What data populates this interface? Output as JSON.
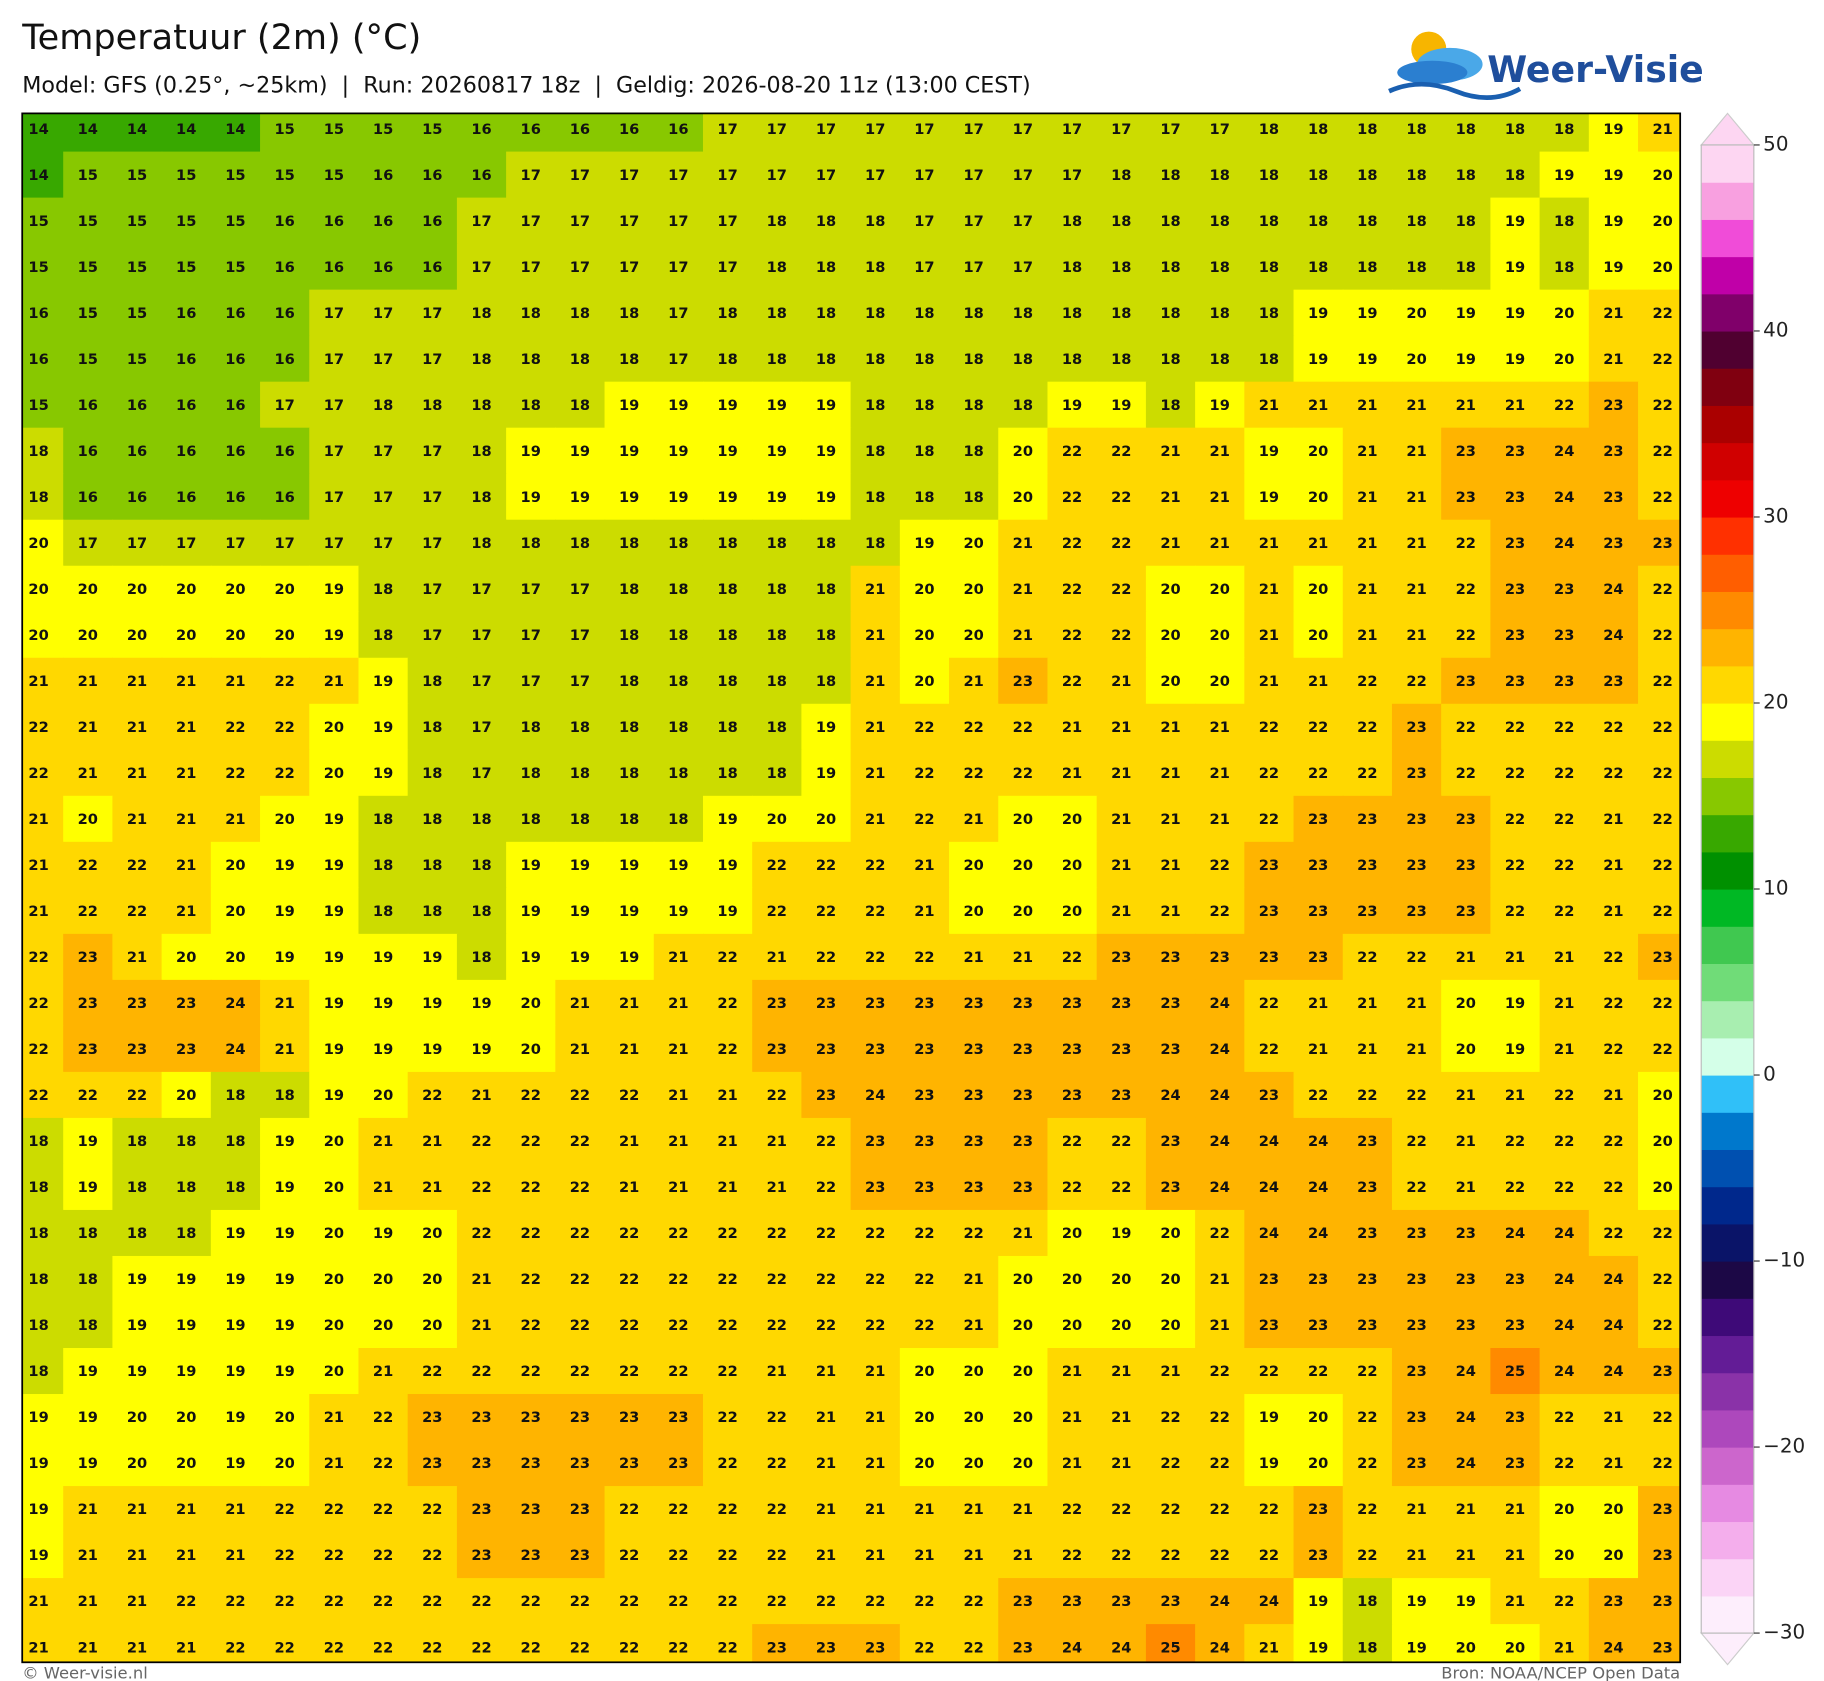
{
  "header": {
    "title": "Temperatuur (2m) (°C)",
    "subtitle": "Model: GFS (0.25°, ~25km)  |  Run: 20260817 18z  |  Geldig: 2026-08-20 11z (13:00 CEST)",
    "logo": "Weer-Visie"
  },
  "map": {
    "values": [
      [
        14,
        14,
        14,
        14,
        14,
        15,
        15,
        15,
        15,
        16,
        16,
        16,
        16,
        16,
        17,
        17,
        17,
        17,
        17,
        17,
        17,
        17,
        17,
        17,
        17,
        18,
        18,
        18,
        18,
        18,
        18,
        18,
        19,
        21
      ],
      [
        14,
        15,
        15,
        15,
        15,
        15,
        15,
        16,
        16,
        16,
        17,
        17,
        17,
        17,
        17,
        17,
        17,
        17,
        17,
        17,
        17,
        17,
        18,
        18,
        18,
        18,
        18,
        18,
        18,
        18,
        18,
        19,
        19,
        20
      ],
      [
        15,
        15,
        15,
        15,
        15,
        16,
        16,
        16,
        16,
        17,
        17,
        17,
        17,
        17,
        17,
        18,
        18,
        18,
        17,
        17,
        17,
        18,
        18,
        18,
        18,
        18,
        18,
        18,
        18,
        18,
        19,
        18,
        19,
        20
      ],
      [
        15,
        15,
        15,
        15,
        15,
        16,
        16,
        16,
        16,
        17,
        17,
        17,
        17,
        17,
        17,
        18,
        18,
        18,
        17,
        17,
        17,
        18,
        18,
        18,
        18,
        18,
        18,
        18,
        18,
        18,
        19,
        18,
        19,
        20
      ],
      [
        16,
        15,
        15,
        16,
        16,
        16,
        17,
        17,
        17,
        18,
        18,
        18,
        18,
        17,
        18,
        18,
        18,
        18,
        18,
        18,
        18,
        18,
        18,
        18,
        18,
        18,
        19,
        19,
        20,
        19,
        19,
        20,
        21,
        22
      ],
      [
        16,
        15,
        15,
        16,
        16,
        16,
        17,
        17,
        17,
        18,
        18,
        18,
        18,
        17,
        18,
        18,
        18,
        18,
        18,
        18,
        18,
        18,
        18,
        18,
        18,
        18,
        19,
        19,
        20,
        19,
        19,
        20,
        21,
        22
      ],
      [
        15,
        16,
        16,
        16,
        16,
        17,
        17,
        18,
        18,
        18,
        18,
        18,
        19,
        19,
        19,
        19,
        19,
        18,
        18,
        18,
        18,
        19,
        19,
        18,
        19,
        21,
        21,
        21,
        21,
        21,
        21,
        22,
        23,
        22
      ],
      [
        18,
        16,
        16,
        16,
        16,
        16,
        17,
        17,
        17,
        18,
        19,
        19,
        19,
        19,
        19,
        19,
        19,
        18,
        18,
        18,
        20,
        22,
        22,
        21,
        21,
        19,
        20,
        21,
        21,
        23,
        23,
        24,
        23,
        22
      ],
      [
        18,
        16,
        16,
        16,
        16,
        16,
        17,
        17,
        17,
        18,
        19,
        19,
        19,
        19,
        19,
        19,
        19,
        18,
        18,
        18,
        20,
        22,
        22,
        21,
        21,
        19,
        20,
        21,
        21,
        23,
        23,
        24,
        23,
        22
      ],
      [
        20,
        17,
        17,
        17,
        17,
        17,
        17,
        17,
        17,
        18,
        18,
        18,
        18,
        18,
        18,
        18,
        18,
        18,
        19,
        20,
        21,
        22,
        22,
        21,
        21,
        21,
        21,
        21,
        21,
        22,
        23,
        24,
        23,
        23
      ],
      [
        20,
        20,
        20,
        20,
        20,
        20,
        19,
        18,
        17,
        17,
        17,
        17,
        18,
        18,
        18,
        18,
        18,
        21,
        20,
        20,
        21,
        22,
        22,
        20,
        20,
        21,
        20,
        21,
        21,
        22,
        23,
        23,
        24,
        22
      ],
      [
        20,
        20,
        20,
        20,
        20,
        20,
        19,
        18,
        17,
        17,
        17,
        17,
        18,
        18,
        18,
        18,
        18,
        21,
        20,
        20,
        21,
        22,
        22,
        20,
        20,
        21,
        20,
        21,
        21,
        22,
        23,
        23,
        24,
        22
      ],
      [
        21,
        21,
        21,
        21,
        21,
        22,
        21,
        19,
        18,
        17,
        17,
        17,
        18,
        18,
        18,
        18,
        18,
        21,
        20,
        21,
        23,
        22,
        21,
        20,
        20,
        21,
        21,
        22,
        22,
        23,
        23,
        23,
        23,
        22
      ],
      [
        22,
        21,
        21,
        21,
        22,
        22,
        20,
        19,
        18,
        17,
        18,
        18,
        18,
        18,
        18,
        18,
        19,
        21,
        22,
        22,
        22,
        21,
        21,
        21,
        21,
        22,
        22,
        22,
        23,
        22,
        22,
        22,
        22,
        22
      ],
      [
        22,
        21,
        21,
        21,
        22,
        22,
        20,
        19,
        18,
        17,
        18,
        18,
        18,
        18,
        18,
        18,
        19,
        21,
        22,
        22,
        22,
        21,
        21,
        21,
        21,
        22,
        22,
        22,
        23,
        22,
        22,
        22,
        22,
        22
      ],
      [
        21,
        20,
        21,
        21,
        21,
        20,
        19,
        18,
        18,
        18,
        18,
        18,
        18,
        18,
        19,
        20,
        20,
        21,
        22,
        21,
        20,
        20,
        21,
        21,
        21,
        22,
        23,
        23,
        23,
        23,
        22,
        22,
        21,
        22
      ],
      [
        21,
        22,
        22,
        21,
        20,
        19,
        19,
        18,
        18,
        18,
        19,
        19,
        19,
        19,
        19,
        22,
        22,
        22,
        21,
        20,
        20,
        20,
        21,
        21,
        22,
        23,
        23,
        23,
        23,
        23,
        22,
        22,
        21,
        22
      ],
      [
        21,
        22,
        22,
        21,
        20,
        19,
        19,
        18,
        18,
        18,
        19,
        19,
        19,
        19,
        19,
        22,
        22,
        22,
        21,
        20,
        20,
        20,
        21,
        21,
        22,
        23,
        23,
        23,
        23,
        23,
        22,
        22,
        21,
        22
      ],
      [
        22,
        23,
        21,
        20,
        20,
        19,
        19,
        19,
        19,
        18,
        19,
        19,
        19,
        21,
        22,
        21,
        22,
        22,
        22,
        21,
        21,
        22,
        23,
        23,
        23,
        23,
        23,
        22,
        22,
        21,
        21,
        21,
        22,
        23
      ],
      [
        22,
        23,
        23,
        23,
        24,
        21,
        19,
        19,
        19,
        19,
        20,
        21,
        21,
        21,
        22,
        23,
        23,
        23,
        23,
        23,
        23,
        23,
        23,
        23,
        24,
        22,
        21,
        21,
        21,
        20,
        19,
        21,
        22,
        22
      ],
      [
        22,
        23,
        23,
        23,
        24,
        21,
        19,
        19,
        19,
        19,
        20,
        21,
        21,
        21,
        22,
        23,
        23,
        23,
        23,
        23,
        23,
        23,
        23,
        23,
        24,
        22,
        21,
        21,
        21,
        20,
        19,
        21,
        22,
        22
      ],
      [
        22,
        22,
        22,
        20,
        18,
        18,
        19,
        20,
        22,
        21,
        22,
        22,
        22,
        21,
        21,
        22,
        23,
        24,
        23,
        23,
        23,
        23,
        23,
        24,
        24,
        23,
        22,
        22,
        22,
        21,
        21,
        22,
        21,
        20
      ],
      [
        18,
        19,
        18,
        18,
        18,
        19,
        20,
        21,
        21,
        22,
        22,
        22,
        21,
        21,
        21,
        21,
        22,
        23,
        23,
        23,
        23,
        22,
        22,
        23,
        24,
        24,
        24,
        23,
        22,
        21,
        22,
        22,
        22,
        20
      ],
      [
        18,
        19,
        18,
        18,
        18,
        19,
        20,
        21,
        21,
        22,
        22,
        22,
        21,
        21,
        21,
        21,
        22,
        23,
        23,
        23,
        23,
        22,
        22,
        23,
        24,
        24,
        24,
        23,
        22,
        21,
        22,
        22,
        22,
        20
      ],
      [
        18,
        18,
        18,
        18,
        19,
        19,
        20,
        19,
        20,
        22,
        22,
        22,
        22,
        22,
        22,
        22,
        22,
        22,
        22,
        22,
        21,
        20,
        19,
        20,
        22,
        24,
        24,
        23,
        23,
        23,
        24,
        24,
        22,
        22
      ],
      [
        18,
        18,
        19,
        19,
        19,
        19,
        20,
        20,
        20,
        21,
        22,
        22,
        22,
        22,
        22,
        22,
        22,
        22,
        22,
        21,
        20,
        20,
        20,
        20,
        21,
        23,
        23,
        23,
        23,
        23,
        23,
        24,
        24,
        22
      ],
      [
        18,
        18,
        19,
        19,
        19,
        19,
        20,
        20,
        20,
        21,
        22,
        22,
        22,
        22,
        22,
        22,
        22,
        22,
        22,
        21,
        20,
        20,
        20,
        20,
        21,
        23,
        23,
        23,
        23,
        23,
        23,
        24,
        24,
        22
      ],
      [
        18,
        19,
        19,
        19,
        19,
        19,
        20,
        21,
        22,
        22,
        22,
        22,
        22,
        22,
        22,
        21,
        21,
        21,
        20,
        20,
        20,
        21,
        21,
        21,
        22,
        22,
        22,
        22,
        23,
        24,
        25,
        24,
        24,
        23
      ],
      [
        19,
        19,
        20,
        20,
        19,
        20,
        21,
        22,
        23,
        23,
        23,
        23,
        23,
        23,
        22,
        22,
        21,
        21,
        20,
        20,
        20,
        21,
        21,
        22,
        22,
        19,
        20,
        22,
        23,
        24,
        23,
        22,
        21,
        22
      ],
      [
        19,
        19,
        20,
        20,
        19,
        20,
        21,
        22,
        23,
        23,
        23,
        23,
        23,
        23,
        22,
        22,
        21,
        21,
        20,
        20,
        20,
        21,
        21,
        22,
        22,
        19,
        20,
        22,
        23,
        24,
        23,
        22,
        21,
        22
      ],
      [
        19,
        21,
        21,
        21,
        21,
        22,
        22,
        22,
        22,
        23,
        23,
        23,
        22,
        22,
        22,
        22,
        21,
        21,
        21,
        21,
        21,
        22,
        22,
        22,
        22,
        22,
        23,
        22,
        21,
        21,
        21,
        20,
        20,
        23
      ],
      [
        19,
        21,
        21,
        21,
        21,
        22,
        22,
        22,
        22,
        23,
        23,
        23,
        22,
        22,
        22,
        22,
        21,
        21,
        21,
        21,
        21,
        22,
        22,
        22,
        22,
        22,
        23,
        22,
        21,
        21,
        21,
        20,
        20,
        23
      ],
      [
        21,
        21,
        21,
        22,
        22,
        22,
        22,
        22,
        22,
        22,
        22,
        22,
        22,
        22,
        22,
        22,
        22,
        22,
        22,
        22,
        23,
        23,
        23,
        23,
        24,
        24,
        19,
        18,
        19,
        19,
        21,
        22,
        23,
        23
      ],
      [
        21,
        21,
        21,
        21,
        22,
        22,
        22,
        22,
        22,
        22,
        22,
        22,
        22,
        22,
        22,
        23,
        23,
        23,
        22,
        22,
        23,
        24,
        24,
        25,
        24,
        21,
        19,
        18,
        19,
        20,
        20,
        21,
        24,
        23
      ]
    ]
  },
  "colorbar": {
    "lim": [
      -30,
      50
    ],
    "ticks": [
      50,
      40,
      30,
      20,
      10,
      0,
      {
        "value": -10,
        "label": "−10"
      },
      {
        "value": -20,
        "label": "−20"
      },
      {
        "value": -30,
        "label": "−30"
      }
    ],
    "colors": [
      "#fdeefc",
      "#fbd4f6",
      "#f4aeec",
      "#e68ae2",
      "#cc66cc",
      "#ad48bc",
      "#8a32a8",
      "#631c96",
      "#3e0a78",
      "#1c0846",
      "#0a1468",
      "#00288c",
      "#0050b0",
      "#0078cc",
      "#30c0f8",
      "#d4ffe8",
      "#a8eeb0",
      "#70dc78",
      "#40c850",
      "#00b824",
      "#009000",
      "#38a800",
      "#88c800",
      "#ccdc00",
      "#ffff00",
      "#ffd800",
      "#ffb400",
      "#ff8a00",
      "#ff5e00",
      "#ff3000",
      "#ee0000",
      "#d00000",
      "#aa0000",
      "#800010",
      "#500030",
      "#80006a",
      "#c000a8",
      "#f04cd8",
      "#f8a0e0",
      "#fdd6f2"
    ]
  },
  "footer": {
    "left": "© Weer-visie.nl",
    "right": "Bron: NOAA/NCEP Open Data"
  }
}
